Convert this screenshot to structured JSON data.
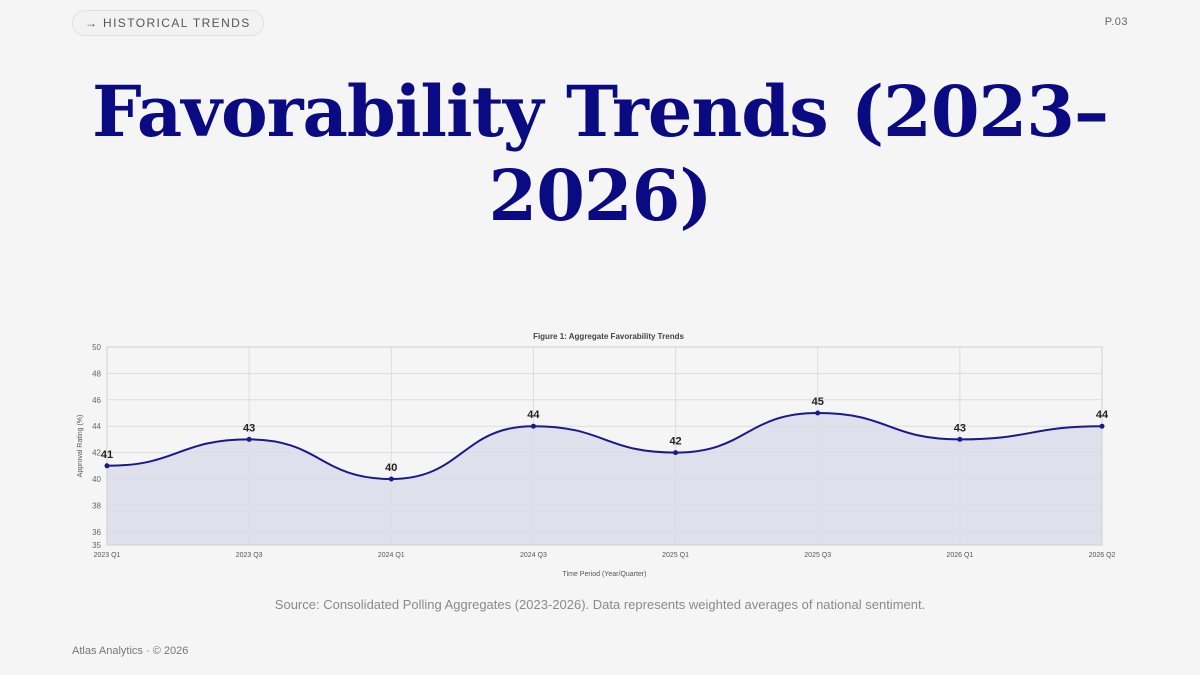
{
  "header": {
    "section_arrow": "→",
    "section_label": "HISTORICAL TRENDS",
    "page_number": "P.03"
  },
  "title": "Favorability Trends (2023–2026)",
  "chart_data": {
    "type": "area",
    "title": "Figure 1: Aggregate Favorability Trends",
    "xlabel": "Time Period (Year/Quarter)",
    "ylabel": "Approval Rating (%)",
    "categories": [
      "2023 Q1",
      "2023 Q3",
      "2024 Q1",
      "2024 Q3",
      "2025 Q1",
      "2025 Q3",
      "2026 Q1",
      "2026 Q2"
    ],
    "values": [
      41,
      43,
      40,
      44,
      42,
      45,
      43,
      44
    ],
    "ylim": [
      35,
      50
    ],
    "yticks": [
      35,
      36,
      38,
      40,
      42,
      44,
      46,
      48,
      50
    ],
    "grid": true,
    "data_labels": true,
    "smooth": true,
    "line_color": "#1a1a8c",
    "fill_color": "#dcdcea"
  },
  "source_note": "Source: Consolidated Polling Aggregates (2023-2026). Data represents weighted averages of national sentiment.",
  "footer": {
    "text": "Atlas Analytics · © 2026"
  }
}
